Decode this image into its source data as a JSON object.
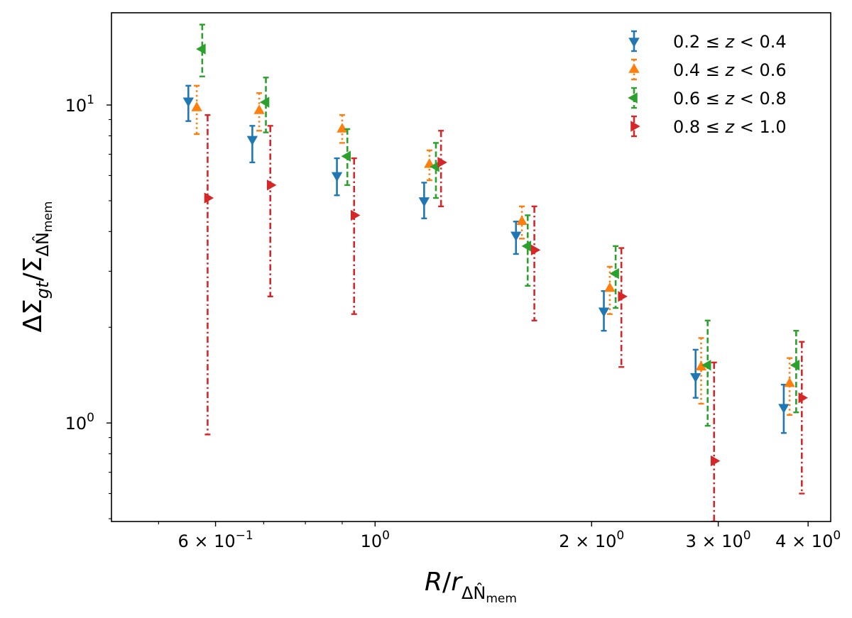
{
  "chart_data": {
    "type": "scatter",
    "title": "",
    "xlabel": "R/r_{ΔN̂mem}",
    "ylabel": "ΔΣ_gt/Σ_{ΔN̂mem}",
    "xscale": "log",
    "yscale": "log",
    "xlim": [
      0.43,
      4.3
    ],
    "ylim": [
      0.49,
      19.5
    ],
    "grid": false,
    "legend_position": "top-right",
    "x_ticks": [
      {
        "value": 0.6,
        "mantissa": "6",
        "exponent": "−1"
      },
      {
        "value": 1.0,
        "mantissa": "",
        "exponent": "0"
      },
      {
        "value": 2.0,
        "mantissa": "2",
        "exponent": "0"
      },
      {
        "value": 3.0,
        "mantissa": "3",
        "exponent": "0"
      },
      {
        "value": 4.0,
        "mantissa": "4",
        "exponent": "0"
      }
    ],
    "y_ticks": [
      {
        "value": 1.0,
        "exponent": "0"
      },
      {
        "value": 10.0,
        "exponent": "1"
      }
    ],
    "series": [
      {
        "name": "0.2 ≤ z < 0.4",
        "color": "#1f77b4",
        "marker": "triangle-down",
        "linestyle": "solid",
        "points": [
          {
            "x": 0.55,
            "y": 10.3,
            "ylo": 8.9,
            "yhi": 11.5
          },
          {
            "x": 0.675,
            "y": 7.8,
            "ylo": 6.6,
            "yhi": 8.6
          },
          {
            "x": 0.885,
            "y": 6.0,
            "ylo": 5.2,
            "yhi": 6.8
          },
          {
            "x": 1.17,
            "y": 5.0,
            "ylo": 4.4,
            "yhi": 5.7
          },
          {
            "x": 1.57,
            "y": 3.9,
            "ylo": 3.4,
            "yhi": 4.3
          },
          {
            "x": 2.08,
            "y": 2.25,
            "ylo": 1.95,
            "yhi": 2.6
          },
          {
            "x": 2.79,
            "y": 1.4,
            "ylo": 1.2,
            "yhi": 1.7
          },
          {
            "x": 3.7,
            "y": 1.12,
            "ylo": 0.93,
            "yhi": 1.32
          }
        ]
      },
      {
        "name": "0.4 ≤ z < 0.6",
        "color": "#ff7f0e",
        "marker": "triangle-up",
        "linestyle": "dotted",
        "points": [
          {
            "x": 0.565,
            "y": 9.8,
            "ylo": 8.1,
            "yhi": 11.5
          },
          {
            "x": 0.69,
            "y": 9.6,
            "ylo": 8.3,
            "yhi": 10.9
          },
          {
            "x": 0.9,
            "y": 8.4,
            "ylo": 7.6,
            "yhi": 9.3
          },
          {
            "x": 1.19,
            "y": 6.5,
            "ylo": 5.8,
            "yhi": 7.2
          },
          {
            "x": 1.6,
            "y": 4.3,
            "ylo": 3.8,
            "yhi": 4.8
          },
          {
            "x": 2.12,
            "y": 2.65,
            "ylo": 2.2,
            "yhi": 3.1
          },
          {
            "x": 2.84,
            "y": 1.5,
            "ylo": 1.15,
            "yhi": 1.85
          },
          {
            "x": 3.77,
            "y": 1.33,
            "ylo": 1.06,
            "yhi": 1.6
          }
        ]
      },
      {
        "name": "0.6 ≤ z < 0.8",
        "color": "#2ca02c",
        "marker": "triangle-left",
        "linestyle": "dashed",
        "points": [
          {
            "x": 0.575,
            "y": 15.0,
            "ylo": 12.3,
            "yhi": 17.9
          },
          {
            "x": 0.705,
            "y": 10.2,
            "ylo": 8.2,
            "yhi": 12.2
          },
          {
            "x": 0.915,
            "y": 6.9,
            "ylo": 5.6,
            "yhi": 8.4
          },
          {
            "x": 1.215,
            "y": 6.4,
            "ylo": 5.1,
            "yhi": 7.6
          },
          {
            "x": 1.63,
            "y": 3.6,
            "ylo": 2.7,
            "yhi": 4.5
          },
          {
            "x": 2.16,
            "y": 2.95,
            "ylo": 2.3,
            "yhi": 3.6
          },
          {
            "x": 2.9,
            "y": 1.52,
            "ylo": 0.98,
            "yhi": 2.1
          },
          {
            "x": 3.85,
            "y": 1.52,
            "ylo": 1.08,
            "yhi": 1.95
          }
        ]
      },
      {
        "name": "0.8 ≤ z < 1.0",
        "color": "#d62728",
        "marker": "triangle-right",
        "linestyle": "dashdot",
        "points": [
          {
            "x": 0.585,
            "y": 5.1,
            "ylo": 0.92,
            "yhi": 9.3
          },
          {
            "x": 0.715,
            "y": 5.6,
            "ylo": 2.5,
            "yhi": 8.6
          },
          {
            "x": 0.935,
            "y": 4.5,
            "ylo": 2.2,
            "yhi": 6.8
          },
          {
            "x": 1.235,
            "y": 6.6,
            "ylo": 4.8,
            "yhi": 8.3
          },
          {
            "x": 1.665,
            "y": 3.5,
            "ylo": 2.1,
            "yhi": 4.8
          },
          {
            "x": 2.2,
            "y": 2.5,
            "ylo": 1.5,
            "yhi": 3.55
          },
          {
            "x": 2.96,
            "y": 0.76,
            "ylo": 0.49,
            "yhi": 1.55
          },
          {
            "x": 3.92,
            "y": 1.2,
            "ylo": 0.6,
            "yhi": 1.8
          }
        ]
      }
    ]
  }
}
